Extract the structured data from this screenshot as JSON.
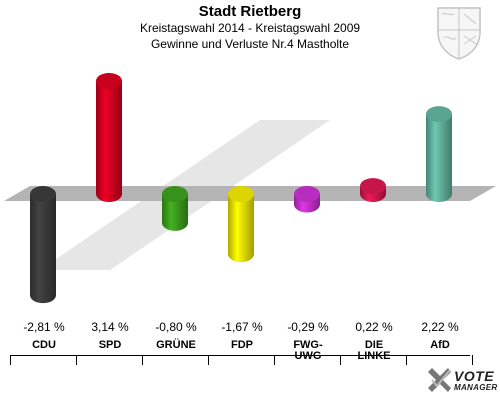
{
  "header": {
    "title": "Stadt Rietberg",
    "subtitle": "Kreistagswahl 2014 - Kreistagswahl 2009",
    "subtitle2": "Gewinne und Verluste Nr.4 Mastholte"
  },
  "chart_data": {
    "type": "bar",
    "categories": [
      "CDU",
      "SPD",
      "GRÜNE",
      "FDP",
      "FWG-UWG",
      "DIE LINKE",
      "AfD"
    ],
    "category_labels": [
      [
        "CDU"
      ],
      [
        "SPD"
      ],
      [
        "GRÜNE"
      ],
      [
        "FDP"
      ],
      [
        "FWG-",
        "UWG"
      ],
      [
        "DIE",
        "LINKE"
      ],
      [
        "AfD"
      ]
    ],
    "values": [
      -2.81,
      3.14,
      -0.8,
      -1.67,
      -0.29,
      0.22,
      2.22
    ],
    "value_labels": [
      "-2,81 %",
      "3,14 %",
      "-0,80 %",
      "-1,67 %",
      "-0,29 %",
      "0,22 %",
      "2,22 %"
    ],
    "colors": [
      "#3a3a3a",
      "#d0001f",
      "#3a9a1c",
      "#e8e000",
      "#c12fc8",
      "#d0174c",
      "#5fae9a"
    ],
    "ylim": [
      -3.5,
      3.5
    ],
    "grid": false,
    "legend": "none"
  },
  "branding": {
    "logo_line1": "VOTE",
    "logo_line2": "MANAGER",
    "crest_icon": "coat-of-arms-icon",
    "logo_icon": "checkmark-x-icon"
  }
}
